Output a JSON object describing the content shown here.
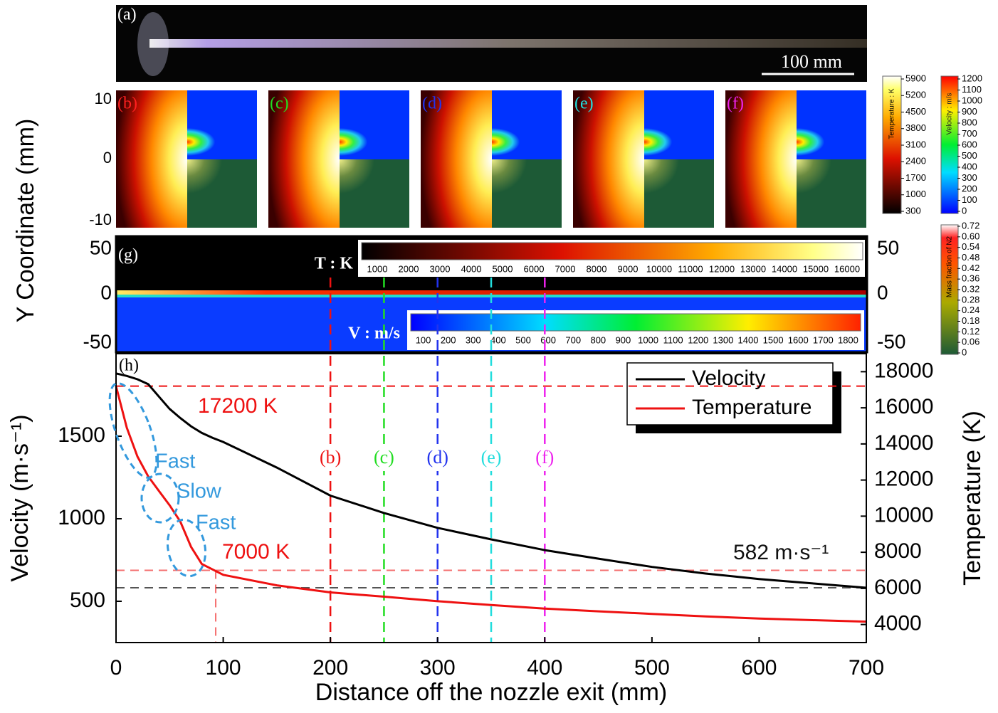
{
  "panel_a": {
    "label": "(a)",
    "scale_bar": "100 mm"
  },
  "panels_bf": {
    "labels": [
      "(b)",
      "(c)",
      "(d)",
      "(e)",
      "(f)"
    ],
    "colors": [
      "#ff2020",
      "#22dd22",
      "#2233ee",
      "#22dddd",
      "#ee22ee"
    ],
    "yticks": [
      10,
      0,
      -10
    ]
  },
  "colorbars": {
    "temperature": {
      "title": "Temperature : K",
      "ticks": [
        5900,
        5200,
        4500,
        3800,
        3100,
        2400,
        1700,
        1000,
        300
      ]
    },
    "velocity": {
      "title": "Velocity : m/s",
      "ticks": [
        1200,
        1100,
        1000,
        900,
        800,
        700,
        600,
        500,
        400,
        300,
        200,
        100,
        0
      ]
    },
    "mass_fraction": {
      "title": "Mass fraction of N2",
      "ticks": [
        "0.72",
        "0.60",
        "0.54",
        "0.48",
        "0.42",
        "0.36",
        "0.32",
        "0.28",
        "0.24",
        "0.18",
        "0.12",
        "0.06",
        "0"
      ]
    }
  },
  "panel_g": {
    "label": "(g)",
    "yticks": [
      50,
      0,
      -50
    ],
    "t_bar": {
      "title": "T : K",
      "ticks": [
        1000,
        2000,
        3000,
        4000,
        5000,
        6000,
        7000,
        8000,
        9000,
        10000,
        11000,
        12000,
        13000,
        14000,
        15000,
        16000
      ]
    },
    "v_bar": {
      "title": "V : m/s",
      "ticks": [
        100,
        200,
        300,
        400,
        500,
        600,
        700,
        800,
        900,
        1000,
        1100,
        1200,
        1300,
        1400,
        1500,
        1600,
        1700,
        1800
      ]
    }
  },
  "y_label": "Y Coordinate  (mm)",
  "chart_data": {
    "type": "line",
    "panel_label": "(h)",
    "x_label": "Distance off the nozzle exit  (mm)",
    "y_label": "Velocity  (m·s⁻¹)",
    "y2_label": "Temperature  (K)",
    "x": [
      0,
      10,
      20,
      30,
      40,
      50,
      60,
      70,
      80,
      90,
      100,
      150,
      200,
      250,
      300,
      350,
      400,
      450,
      500,
      550,
      600,
      650,
      700
    ],
    "series": [
      {
        "name": "Velocity",
        "color": "#000000",
        "values": [
          1880,
          1865,
          1845,
          1815,
          1740,
          1665,
          1610,
          1560,
          1520,
          1490,
          1465,
          1310,
          1140,
          1035,
          945,
          875,
          810,
          758,
          708,
          668,
          635,
          608,
          582
        ]
      },
      {
        "name": "Temperature",
        "color": "#ee1111",
        "axis": "y2",
        "values": [
          17200,
          14900,
          13300,
          12200,
          11400,
          10600,
          9700,
          8300,
          7350,
          7050,
          6750,
          6170,
          5780,
          5540,
          5290,
          5080,
          4880,
          4730,
          4590,
          4450,
          4330,
          4240,
          4160
        ]
      }
    ],
    "xlim": [
      0,
      700
    ],
    "xticks": [
      0,
      100,
      200,
      300,
      400,
      500,
      600,
      700
    ],
    "ylim": [
      250,
      2000
    ],
    "yticks": [
      500,
      1000,
      1500
    ],
    "y2lim": [
      3000,
      19000
    ],
    "y2ticks": [
      4000,
      6000,
      8000,
      10000,
      12000,
      14000,
      16000,
      18000
    ],
    "legend": "upper right",
    "reference_lines": [
      {
        "axis": "y2",
        "value": 17200,
        "label": "17200 K",
        "color": "#ee1111"
      },
      {
        "axis": "y2",
        "value": 7000,
        "label": "7000 K",
        "color": "#ee1111"
      },
      {
        "axis": "y",
        "value": 582,
        "label": "582 m·s⁻¹",
        "color": "#555555"
      }
    ],
    "vertical_lines": [
      {
        "x": 200,
        "label": "(b)",
        "color": "#ee1111"
      },
      {
        "x": 250,
        "label": "(c)",
        "color": "#22dd22"
      },
      {
        "x": 300,
        "label": "(d)",
        "color": "#2233ee"
      },
      {
        "x": 350,
        "label": "(e)",
        "color": "#22dddd"
      },
      {
        "x": 400,
        "label": "(f)",
        "color": "#ee22ee"
      }
    ],
    "regions": [
      "Fast",
      "Slow",
      "Fast"
    ]
  }
}
